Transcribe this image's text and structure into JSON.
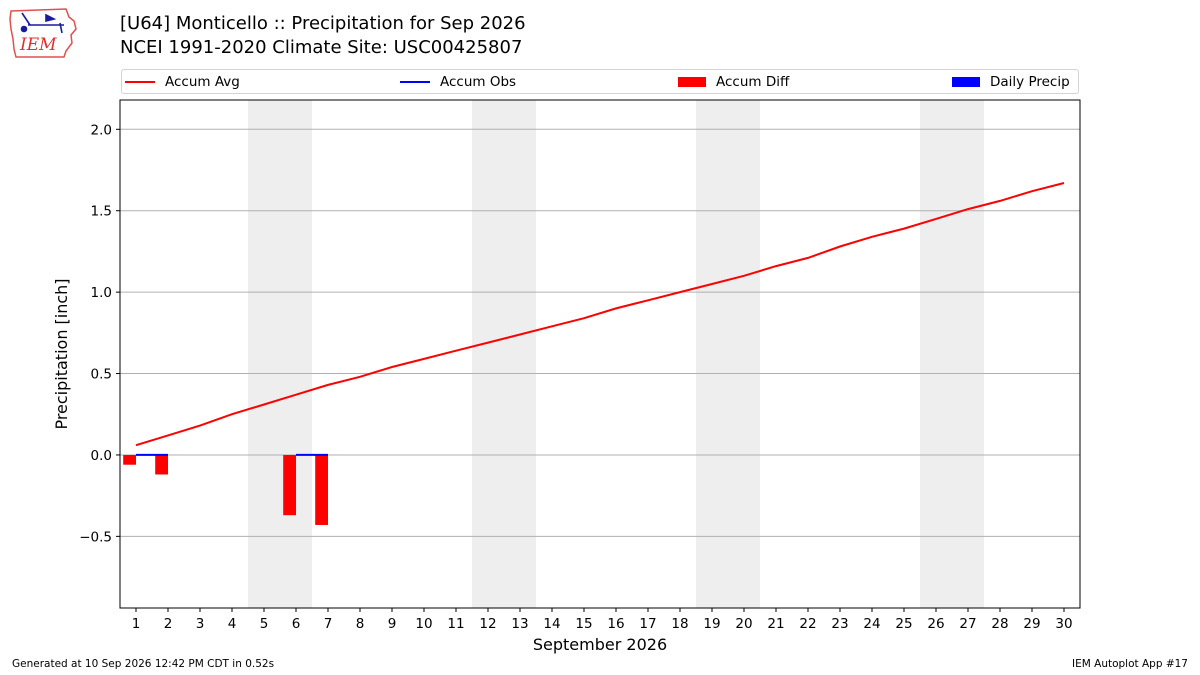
{
  "header": {
    "title_line1": "[U64] Monticello :: Precipitation for Sep 2026",
    "title_line2": "NCEI 1991-2020 Climate Site: USC00425807"
  },
  "logo": {
    "text": "IEM",
    "icon": "iem-iowa-logo-icon"
  },
  "legend": [
    {
      "label": "Accum Avg",
      "kind": "line",
      "color": "#ff0000"
    },
    {
      "label": "Accum Obs",
      "kind": "line",
      "color": "#0000ff"
    },
    {
      "label": "Accum Diff",
      "kind": "box",
      "color": "#ff0000"
    },
    {
      "label": "Daily Precip",
      "kind": "box",
      "color": "#0000ff"
    }
  ],
  "footer": {
    "left": "Generated at 10 Sep 2026 12:42 PM CDT in 0.52s",
    "right": "IEM Autoplot App #17"
  },
  "chart_data": {
    "type": "line",
    "xlabel": "September 2026",
    "ylabel": "Precipitation [inch]",
    "xlim": [
      0.5,
      30.5
    ],
    "ylim": [
      -0.94,
      2.18
    ],
    "yticks": [
      -0.5,
      0.0,
      0.5,
      1.0,
      1.5,
      2.0
    ],
    "ytick_labels": [
      "−0.5",
      "0.0",
      "0.5",
      "1.0",
      "1.5",
      "2.0"
    ],
    "x": [
      1,
      2,
      3,
      4,
      5,
      6,
      7,
      8,
      9,
      10,
      11,
      12,
      13,
      14,
      15,
      16,
      17,
      18,
      19,
      20,
      21,
      22,
      23,
      24,
      25,
      26,
      27,
      28,
      29,
      30
    ],
    "weekend_days": [
      5,
      6,
      12,
      13,
      19,
      20,
      26,
      27
    ],
    "grid": "horizontal",
    "series": [
      {
        "name": "Accum Avg",
        "type": "line",
        "color": "#ff0000",
        "x": [
          1,
          2,
          3,
          4,
          5,
          6,
          7,
          8,
          9,
          10,
          11,
          12,
          13,
          14,
          15,
          16,
          17,
          18,
          19,
          20,
          21,
          22,
          23,
          24,
          25,
          26,
          27,
          28,
          29,
          30
        ],
        "values": [
          0.06,
          0.12,
          0.18,
          0.25,
          0.31,
          0.37,
          0.43,
          0.48,
          0.54,
          0.59,
          0.64,
          0.69,
          0.74,
          0.79,
          0.84,
          0.9,
          0.95,
          1.0,
          1.05,
          1.1,
          1.16,
          1.21,
          1.28,
          1.34,
          1.39,
          1.45,
          1.51,
          1.56,
          1.62,
          1.67
        ]
      },
      {
        "name": "Accum Obs",
        "type": "line",
        "color": "#0000ff",
        "x": [
          1,
          2,
          3,
          4,
          5,
          6,
          7
        ],
        "values": [
          0,
          0,
          null,
          null,
          null,
          0,
          0
        ]
      },
      {
        "name": "Accum Diff",
        "type": "bar",
        "color": "#ff0000",
        "x": [
          0.8,
          1.8,
          5.8,
          6.8
        ],
        "values": [
          -0.06,
          -0.12,
          -0.37,
          -0.43
        ]
      },
      {
        "name": "Daily Precip",
        "type": "bar",
        "color": "#0000ff",
        "x": [
          1.2,
          2.2,
          6.2,
          7.2
        ],
        "values": [
          0,
          0,
          0,
          0
        ]
      }
    ]
  }
}
